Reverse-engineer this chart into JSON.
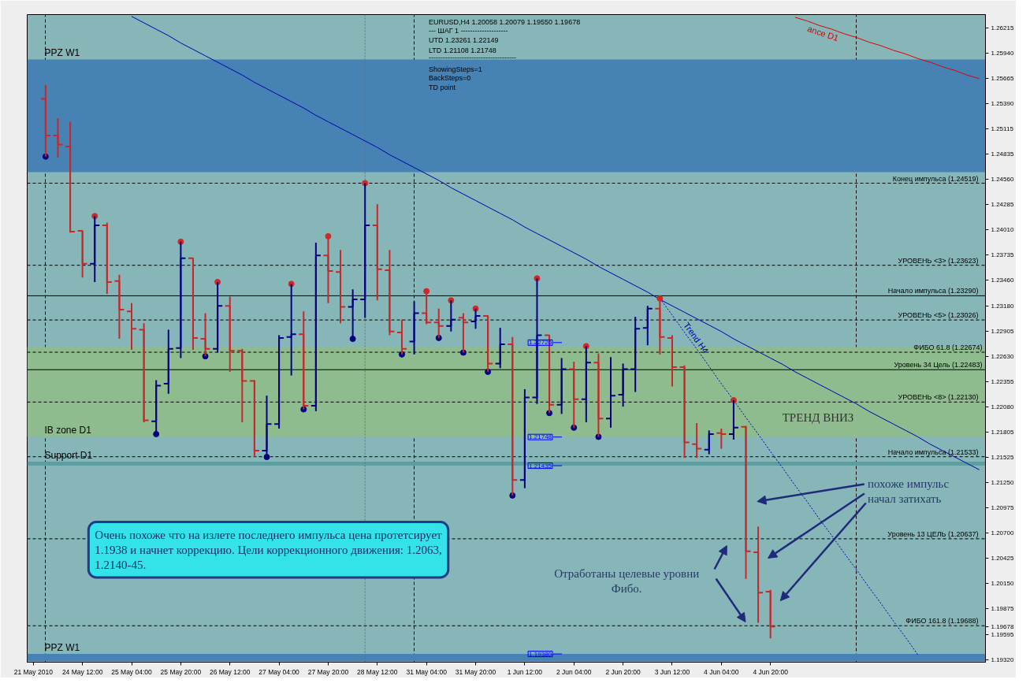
{
  "chart_data": {
    "type": "candlestick",
    "annotations": [
      "EURUSD,H4  1.20058 1.20079 1.19550 1.19678",
      "---  ШАГ 1  --------------------",
      "UTD 1.23261  1.22149",
      "LTD  1.21108  1.21748",
      "-------------------------------------",
      "ShowingSteps=1",
      "BackSteps=0",
      "TD point",
      "Очень похоже что на излете последнего импульса цена протетсирует\n1.1938 и начнет коррекцию. Цели коррекционного движения: 1.2063,\n1.2140-45.",
      "похоже импульс\nначал затихать",
      "Отработаны целевые уровни\nФибо.",
      "ТРЕНД ВНИЗ",
      "1.22726",
      "1.21748",
      "1.21435",
      "1.19380"
    ],
    "categories": [
      "21 May 2010",
      null,
      null,
      null,
      "24 May 12:00",
      null,
      null,
      null,
      "25 May 04:00",
      null,
      null,
      null,
      "25 May 20:00",
      null,
      null,
      null,
      "26 May 12:00",
      null,
      null,
      null,
      "27 May 04:00",
      null,
      null,
      null,
      "27 May 20:00",
      null,
      null,
      null,
      "28 May 12:00",
      null,
      null,
      null,
      "31 May 04:00",
      null,
      null,
      null,
      "31 May 20:00",
      null,
      null,
      null,
      "1 Jun 12:00",
      null,
      null,
      null,
      "2 Jun 04:00",
      null,
      null,
      null,
      "2 Jun 20:00",
      null,
      null,
      null,
      "3 Jun 12:00",
      null,
      null,
      null,
      "4 Jun 04:00",
      null,
      null,
      null,
      "4 Jun 20:00",
      null,
      null,
      null,
      null,
      null,
      null,
      null,
      null,
      null,
      null,
      null,
      null,
      null,
      null,
      null,
      null,
      null
    ],
    "ohlc": [
      null,
      [
        1.2544,
        1.2559,
        1.2481,
        1.2504
      ],
      [
        1.2504,
        1.2523,
        1.248,
        1.2494
      ],
      [
        1.2492,
        1.2519,
        1.2398,
        1.2399
      ],
      [
        1.24,
        1.24,
        1.2349,
        1.2364
      ],
      [
        1.2364,
        1.2416,
        1.2344,
        1.2406
      ],
      [
        1.2406,
        1.2409,
        1.2331,
        1.2344
      ],
      [
        1.2345,
        1.2352,
        1.2282,
        1.2314
      ],
      [
        1.2312,
        1.2321,
        1.227,
        1.2293
      ],
      [
        1.2292,
        1.2299,
        1.2191,
        1.2193
      ],
      [
        1.2192,
        1.2237,
        1.2178,
        1.2231
      ],
      [
        1.2233,
        1.2292,
        1.2222,
        1.2271
      ],
      [
        1.2272,
        1.2388,
        1.2261,
        1.237
      ],
      [
        1.237,
        1.237,
        1.227,
        1.2283
      ],
      [
        1.2282,
        1.231,
        1.2263,
        1.2271
      ],
      [
        1.2271,
        1.2344,
        1.2267,
        1.2318
      ],
      [
        1.2318,
        1.2328,
        1.2246,
        1.2269
      ],
      [
        1.2269,
        1.2271,
        1.2191,
        1.2236
      ],
      [
        1.2236,
        1.2237,
        1.2153,
        1.216
      ],
      [
        1.216,
        1.222,
        1.2153,
        1.2189
      ],
      [
        1.2189,
        1.2286,
        1.2184,
        1.2283
      ],
      [
        1.2284,
        1.2342,
        1.2242,
        1.2287
      ],
      [
        1.2287,
        1.2312,
        1.2205,
        1.2209
      ],
      [
        1.2209,
        1.2387,
        1.2203,
        1.2373
      ],
      [
        1.2373,
        1.2394,
        1.2321,
        1.2356
      ],
      [
        1.2355,
        1.2379,
        1.2299,
        1.2317
      ],
      [
        1.2317,
        1.2336,
        1.2282,
        1.2325
      ],
      [
        1.2325,
        1.2452,
        1.2305,
        1.2406
      ],
      [
        1.2406,
        1.2429,
        1.2324,
        1.2358
      ],
      [
        1.2357,
        1.2379,
        1.2286,
        1.229
      ],
      [
        1.2289,
        1.2303,
        1.2265,
        1.2271
      ],
      [
        1.2279,
        1.2323,
        1.2265,
        1.231
      ],
      [
        1.231,
        1.2334,
        1.2298,
        1.23
      ],
      [
        1.23,
        1.2315,
        1.2283,
        1.2296
      ],
      [
        1.2296,
        1.2324,
        1.229,
        1.2303
      ],
      [
        1.2305,
        1.231,
        1.2267,
        1.23
      ],
      [
        1.2301,
        1.2315,
        1.2293,
        1.2307
      ],
      [
        1.2307,
        1.2307,
        1.2246,
        1.2255
      ],
      [
        1.2255,
        1.2294,
        1.225,
        1.2276
      ],
      [
        1.2276,
        1.2284,
        1.2111,
        1.2128
      ],
      [
        1.2128,
        1.2227,
        1.2119,
        1.2218
      ],
      [
        1.2218,
        1.2348,
        1.2211,
        1.2286
      ],
      [
        1.2286,
        1.2286,
        1.2201,
        1.221
      ],
      [
        1.221,
        1.2261,
        1.22,
        1.2249
      ],
      [
        1.2249,
        1.2257,
        1.2185,
        1.2216
      ],
      [
        1.2216,
        1.2274,
        1.2191,
        1.2256
      ],
      [
        1.2256,
        1.2266,
        1.2175,
        1.2195
      ],
      [
        1.2195,
        1.2262,
        1.2185,
        1.222
      ],
      [
        1.2221,
        1.2255,
        1.2208,
        1.2249
      ],
      [
        1.2249,
        1.2306,
        1.2224,
        1.2293
      ],
      [
        1.2294,
        1.2318,
        1.2275,
        1.2315
      ],
      [
        1.2315,
        1.2326,
        1.2265,
        1.2284
      ],
      [
        1.2283,
        1.2286,
        1.223,
        1.2251
      ],
      [
        1.2251,
        1.2253,
        1.2152,
        1.2169
      ],
      [
        1.2167,
        1.219,
        1.2152,
        1.2162
      ],
      [
        1.2161,
        1.2182,
        1.2156,
        1.2178
      ],
      [
        1.2179,
        1.2184,
        1.2162,
        1.2178
      ],
      [
        1.2178,
        1.2215,
        1.2172,
        1.2185
      ],
      [
        1.2186,
        1.2187,
        1.202,
        1.205
      ],
      [
        1.2049,
        1.2077,
        1.1972,
        1.2005
      ],
      [
        1.2006,
        1.2008,
        1.1955,
        1.1968
      ],
      null,
      null,
      null,
      null,
      null,
      null,
      null,
      null,
      null,
      null,
      null,
      null,
      null,
      null,
      null,
      null,
      null
    ],
    "colors": [
      null,
      "#c8282a",
      "#c8282a",
      "#c8282a",
      "#c8282a",
      "#000080",
      "#c8282a",
      "#c8282a",
      "#c8282a",
      "#c8282a",
      "#000080",
      "#000080",
      "#000080",
      "#c8282a",
      "#c8282a",
      "#000080",
      "#c8282a",
      "#c8282a",
      "#c8282a",
      "#000080",
      "#000080",
      "#000080",
      "#c8282a",
      "#000080",
      "#c8282a",
      "#c8282a",
      "#000080",
      "#000080",
      "#c8282a",
      "#c8282a",
      "#c8282a",
      "#000080",
      "#c8282a",
      "#c8282a",
      "#000080",
      "#c8282a",
      "#000080",
      "#c8282a",
      "#000080",
      "#c8282a",
      "#000080",
      "#000080",
      "#c8282a",
      "#000080",
      "#c8282a",
      "#000080",
      "#c8282a",
      "#000080",
      "#000080",
      "#000080",
      "#000080",
      "#c8282a",
      "#c8282a",
      "#c8282a",
      "#c8282a",
      "#000080",
      "#c8282a",
      "#000080",
      "#c8282a",
      "#c8282a",
      "#c8282a",
      null,
      null,
      null,
      null,
      null,
      null,
      null,
      null,
      null,
      null,
      null,
      null,
      null,
      null,
      null,
      null,
      null
    ],
    "ylim": [
      1.1929,
      1.2636
    ],
    "yticks": [
      1.26215,
      {
        "value": 1.2594,
        "label": "1.25940"
      },
      1.25665,
      {
        "value": 1.2539,
        "label": "1.25390"
      },
      1.25115,
      1.24835,
      {
        "value": 1.2456,
        "label": "1.24560"
      },
      1.24285,
      {
        "value": 1.2401,
        "label": "1.24010"
      },
      1.23735,
      {
        "value": 1.2346,
        "label": "1.23460"
      },
      {
        "value": 1.2318,
        "label": "1.23180"
      },
      1.22905,
      {
        "value": 1.2263,
        "label": "1.22630"
      },
      1.22355,
      {
        "value": 1.2208,
        "label": "1.22080"
      },
      1.21805,
      1.21525,
      {
        "value": 1.2125,
        "label": "1.21250"
      },
      1.20975,
      {
        "value": 1.207,
        "label": "1.20700"
      },
      1.20425,
      {
        "value": 1.2015,
        "label": "1.20150"
      },
      1.19875,
      1.19678,
      1.19595,
      {
        "value": 1.1932,
        "label": "1.19320"
      }
    ],
    "grid": "x",
    "series": [
      {
        "type": "line",
        "color": "#0000b0",
        "values": [
          null,
          null,
          null,
          null,
          null,
          null,
          null,
          null,
          1.2634,
          1.2627,
          1.262,
          1.2613,
          1.2605,
          1.2598,
          1.2591,
          1.2584,
          1.2577,
          1.257,
          1.2562,
          1.2555,
          1.2548,
          1.2541,
          1.2534,
          1.2526,
          1.2519,
          1.2512,
          1.2505,
          1.2498,
          1.2491,
          1.2483,
          1.2476,
          1.2469,
          1.2462,
          1.2455,
          1.2447,
          1.244,
          1.2433,
          1.2426,
          1.2419,
          1.2412,
          1.2404,
          1.2397,
          1.239,
          1.2383,
          1.2376,
          1.2369,
          1.2361,
          1.2354,
          1.2347,
          1.234,
          1.2333,
          1.2325,
          1.2318,
          1.2311,
          1.2304,
          1.2297,
          1.229,
          1.2282,
          1.2275,
          1.2268,
          1.2261,
          1.2254,
          1.2246,
          1.2239,
          1.2232,
          1.2225,
          1.2218,
          1.2211,
          1.2203,
          1.2196,
          1.2189,
          1.2182,
          1.2175,
          1.2167,
          1.216,
          1.2153,
          1.2146,
          1.2139
        ]
      },
      {
        "type": "line",
        "name": "Trend H4",
        "color": "#0000b0",
        "line_style": "dotted",
        "values": [
          null,
          null,
          null,
          null,
          null,
          null,
          null,
          null,
          null,
          null,
          null,
          null,
          null,
          null,
          null,
          null,
          null,
          null,
          null,
          null,
          null,
          null,
          null,
          null,
          null,
          null,
          null,
          null,
          null,
          null,
          null,
          null,
          null,
          null,
          null,
          null,
          null,
          null,
          null,
          null,
          null,
          null,
          null,
          null,
          null,
          null,
          null,
          null,
          null,
          null,
          null,
          1.2326,
          1.2308,
          1.2289,
          1.2271,
          1.2252,
          1.2233,
          1.2215,
          1.2196,
          1.2178,
          1.2159,
          1.2141,
          1.2122,
          1.2104,
          1.2085,
          1.2067,
          1.2048,
          1.203,
          1.2011,
          1.1993,
          1.1974,
          1.1956,
          1.1937,
          null,
          null,
          null,
          null,
          null
        ]
      },
      {
        "type": "line",
        "name": "ance D1",
        "color": "#e00000",
        "values": [
          null,
          null,
          null,
          null,
          null,
          null,
          null,
          null,
          null,
          null,
          null,
          null,
          null,
          null,
          null,
          null,
          null,
          null,
          null,
          null,
          null,
          null,
          null,
          null,
          null,
          null,
          null,
          null,
          null,
          null,
          null,
          null,
          null,
          null,
          null,
          null,
          null,
          null,
          null,
          null,
          null,
          null,
          null,
          null,
          null,
          null,
          null,
          null,
          null,
          null,
          null,
          null,
          null,
          null,
          null,
          null,
          null,
          null,
          null,
          null,
          null,
          null,
          1.2633,
          1.2629,
          1.2624,
          1.262,
          1.2615,
          1.2611,
          1.2606,
          1.2602,
          1.2597,
          1.2593,
          1.2588,
          1.2584,
          1.2579,
          1.2575,
          1.257,
          1.2566
        ]
      },
      {
        "type": "scatter",
        "color": "#d02828",
        "marker": "circle",
        "values": [
          null,
          null,
          null,
          null,
          null,
          1.2416,
          null,
          null,
          null,
          null,
          null,
          null,
          1.2388,
          null,
          null,
          1.2344,
          null,
          null,
          null,
          null,
          null,
          1.2342,
          null,
          null,
          1.2394,
          null,
          null,
          1.2452,
          null,
          null,
          null,
          null,
          1.2334,
          null,
          1.2324,
          null,
          1.2315,
          null,
          null,
          null,
          null,
          1.2348,
          null,
          null,
          null,
          1.2274,
          null,
          null,
          null,
          null,
          null,
          1.2326,
          null,
          null,
          null,
          null,
          null,
          1.2215,
          null,
          null,
          null,
          null,
          null,
          null,
          null,
          null,
          null,
          null,
          null,
          null,
          null,
          null,
          null,
          null,
          null,
          null,
          null,
          null
        ]
      },
      {
        "type": "scatter",
        "color": "#000080",
        "marker": "circle",
        "values": [
          null,
          1.2481,
          null,
          null,
          null,
          null,
          null,
          null,
          null,
          null,
          1.2178,
          null,
          null,
          null,
          1.2263,
          null,
          null,
          null,
          null,
          1.2153,
          null,
          null,
          1.2205,
          null,
          null,
          null,
          1.2282,
          null,
          null,
          null,
          1.2265,
          null,
          null,
          1.2283,
          null,
          1.2267,
          null,
          1.2246,
          null,
          1.2111,
          null,
          null,
          1.2201,
          null,
          1.2185,
          null,
          1.2175,
          null,
          null,
          null,
          null,
          null,
          null,
          null,
          null,
          null,
          null,
          null,
          null,
          null,
          null,
          null,
          null,
          null,
          null,
          null,
          null,
          null,
          null,
          null,
          null,
          null,
          null,
          null,
          null,
          null,
          null,
          null
        ]
      }
    ],
    "bands": [
      {
        "axis": "y",
        "from": 1.2587,
        "to": 1.2464,
        "label": "PPZ W1",
        "color": "#4682b4"
      },
      {
        "axis": "y",
        "from": 1.2175,
        "to": 1.2273,
        "label": "IB zone D1",
        "color": "#8fbc8f"
      },
      {
        "axis": "y",
        "from": 1.2148,
        "to": 1.21435,
        "label": "Support D1",
        "color": "#5f9ea0"
      },
      {
        "axis": "y",
        "from": 1.1938,
        "to": 1.193,
        "label": "PPZ W1",
        "color": "#4682b4"
      }
    ],
    "ref_lines": [
      {
        "axis": "y",
        "value": 1.24519,
        "label": "Конец импульса   (1.24519)",
        "color": "#000000",
        "line_style": "dashed"
      },
      {
        "axis": "y",
        "value": 1.23623,
        "label": "УРОВЕНЬ <3>   (1.23623)",
        "color": "#000000",
        "line_style": "dashed"
      },
      {
        "axis": "y",
        "value": 1.2329,
        "label": "Начало импульса   (1.23290)",
        "color": "#000000",
        "line_style": "solid"
      },
      {
        "axis": "y",
        "value": 1.23026,
        "label": "УРОВЕНЬ <5>   (1.23026)",
        "color": "#000000",
        "line_style": "dashed"
      },
      {
        "axis": "y",
        "value": 1.22674,
        "label": "ФИБО 61.8 (1.22674)",
        "color": "#000000",
        "line_style": "dashed"
      },
      {
        "axis": "y",
        "value": 1.22483,
        "label": "Уровень 34 Цель (1.22483)",
        "color": "#000000",
        "line_style": "solid"
      },
      {
        "axis": "y",
        "value": 1.2213,
        "label": "УРОВЕНЬ <8>   (1.22130)",
        "color": "#000000",
        "line_style": "dashed"
      },
      {
        "axis": "y",
        "value": 1.21533,
        "label": "Начало импульса   (1.21533)",
        "color": "#000000",
        "line_style": "dashed"
      },
      {
        "axis": "y",
        "value": 1.20637,
        "label": "Уровень 13 ЦЕЛЬ   (1.20637)",
        "color": "#000000",
        "line_style": "dashed"
      },
      {
        "axis": "y",
        "value": 1.19688,
        "label": "ФИБО 161.8   (1.19688)",
        "color": "#000000",
        "line_style": "dashed"
      }
    ]
  }
}
